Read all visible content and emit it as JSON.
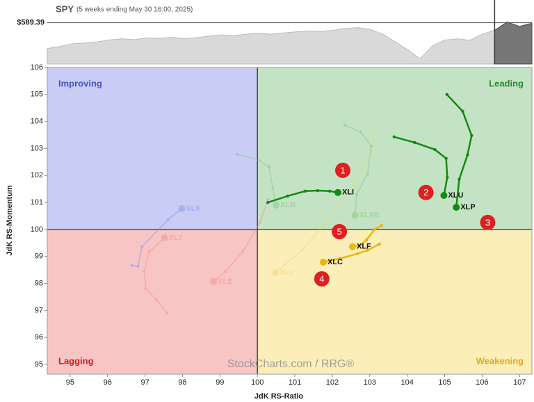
{
  "chart_data": [
    {
      "type": "area",
      "title": "SPY",
      "subtitle": "(5 weeks ending May 30 16:00, 2025)",
      "values": [
        523,
        528,
        535,
        537,
        540,
        545,
        548,
        546,
        550,
        549,
        552,
        548,
        551,
        555,
        558,
        556,
        560,
        562,
        560,
        563,
        566,
        568,
        567,
        570,
        575,
        577,
        572,
        560,
        540,
        520,
        496,
        530,
        545,
        548,
        544,
        560,
        570,
        591,
        580,
        588
      ],
      "ylim": [
        483,
        648
      ],
      "reference": {
        "value": 589.39,
        "label": "$589.39"
      },
      "color": "#d9d9d9",
      "recent_color": "#777777"
    },
    {
      "type": "rrg",
      "xlabel": "JdK RS-Ratio",
      "ylabel": "JdK RS-Momentum",
      "xlim": [
        94.39,
        107.33
      ],
      "ylim": [
        94.64,
        106
      ],
      "xticks": [
        95,
        96,
        97,
        98,
        99,
        100,
        101,
        102,
        103,
        104,
        105,
        106,
        107
      ],
      "yticks": [
        95,
        96,
        97,
        98,
        99,
        100,
        101,
        102,
        103,
        104,
        105,
        106
      ],
      "center": [
        100,
        100
      ],
      "quadrants": [
        {
          "name": "Improving",
          "color": "#c9cdf5",
          "text_color": "#4852c4"
        },
        {
          "name": "Leading",
          "color": "#c4e3c4",
          "text_color": "#2b8a2b"
        },
        {
          "name": "Lagging",
          "color": "#f8c5c5",
          "text_color": "#cc2222"
        },
        {
          "name": "Weakening",
          "color": "#fbeeb9",
          "text_color": "#deac1e"
        }
      ],
      "watermark": "StockCharts.com / RRG®",
      "series": [
        {
          "name": "XLK",
          "color": "#7f8ff0",
          "faded": true,
          "x": [
            96.65,
            96.81,
            96.92,
            97.61,
            97.98
          ],
          "y": [
            98.66,
            98.63,
            99.36,
            100.36,
            100.77
          ]
        },
        {
          "name": "XLY",
          "color": "#f08a8a",
          "faded": true,
          "x": [
            97.59,
            97.3,
            97.02,
            96.98,
            97.11,
            97.52
          ],
          "y": [
            96.91,
            97.4,
            97.81,
            98.45,
            99.18,
            99.69
          ]
        },
        {
          "name": "XLE",
          "color": "#f08a8a",
          "faded": true,
          "x": [
            100.28,
            100.07,
            99.61,
            99.15,
            98.83
          ],
          "y": [
            101.11,
            100.26,
            99.18,
            98.45,
            98.07
          ]
        },
        {
          "name": "XLV",
          "color": "#f2d46a",
          "faded": true,
          "x": [
            103.13,
            103.04,
            102.57,
            101.83,
            101.19,
            100.48
          ],
          "y": [
            103.87,
            102.96,
            101.68,
            100.26,
            99.23,
            98.4
          ]
        },
        {
          "name": "XLB",
          "color": "#7cc47c",
          "faded": true,
          "x": [
            99.46,
            100.02,
            100.31,
            100.41,
            100.5
          ],
          "y": [
            102.78,
            102.58,
            102.32,
            101.55,
            100.9
          ]
        },
        {
          "name": "XLRE",
          "color": "#7cc47c",
          "faded": true,
          "x": [
            102.33,
            102.76,
            103.04,
            102.94,
            102.65,
            102.61
          ],
          "y": [
            103.87,
            103.61,
            103.09,
            102.06,
            101.29,
            100.52
          ]
        },
        {
          "name": "XLI",
          "color": "#138a13",
          "faded": false,
          "x": [
            100.28,
            100.81,
            101.28,
            101.61,
            101.93,
            102.15
          ],
          "y": [
            101.0,
            101.24,
            101.42,
            101.44,
            101.42,
            101.37
          ]
        },
        {
          "name": "XLU",
          "color": "#138a13",
          "faded": false,
          "x": [
            103.65,
            104.2,
            104.74,
            105.04,
            105.07,
            104.98
          ],
          "y": [
            103.43,
            103.22,
            102.96,
            102.63,
            101.93,
            101.26
          ]
        },
        {
          "name": "XLP",
          "color": "#138a13",
          "faded": false,
          "x": [
            105.06,
            105.48,
            105.72,
            105.61,
            105.39,
            105.31
          ],
          "y": [
            105.0,
            104.38,
            103.48,
            102.76,
            101.86,
            100.82
          ]
        },
        {
          "name": "XLF",
          "color": "#e8b810",
          "faded": false,
          "x": [
            103.31,
            103.13,
            102.91,
            102.76,
            102.54
          ],
          "y": [
            100.15,
            100.0,
            99.61,
            99.43,
            99.36
          ]
        },
        {
          "name": "XLC",
          "color": "#e8b810",
          "faded": false,
          "x": [
            103.26,
            102.94,
            102.67,
            102.2,
            101.76
          ],
          "y": [
            99.46,
            99.23,
            99.1,
            98.92,
            98.79
          ]
        }
      ],
      "annotations": [
        {
          "text": "1",
          "x": 102.28,
          "y": 102.19
        },
        {
          "text": "2",
          "x": 104.5,
          "y": 101.37
        },
        {
          "text": "3",
          "x": 106.15,
          "y": 100.26
        },
        {
          "text": "4",
          "x": 101.72,
          "y": 98.17
        },
        {
          "text": "5",
          "x": 102.19,
          "y": 99.92
        }
      ],
      "annotation_color": "#e02020"
    }
  ]
}
